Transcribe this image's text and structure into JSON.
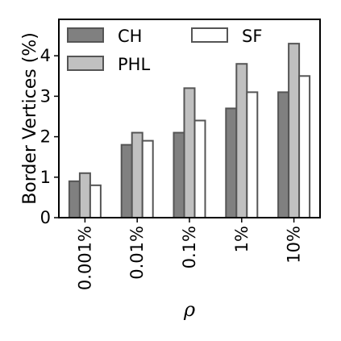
{
  "chart_data": {
    "type": "bar",
    "ylabel": "Border Vertices (%)",
    "xlabel": "ρ",
    "categories": [
      "0.001%",
      "0.01%",
      "0.1%",
      "1%",
      "10%"
    ],
    "ylim": [
      0,
      4.9
    ],
    "yticks": [
      "0",
      "1",
      "2",
      "3",
      "4"
    ],
    "grid": false,
    "legend_position": "top",
    "series": [
      {
        "name": "CH",
        "values": [
          0.9,
          1.8,
          2.1,
          2.7,
          3.1
        ],
        "color": "#808080"
      },
      {
        "name": "PHL",
        "values": [
          1.1,
          2.1,
          3.2,
          3.8,
          4.3
        ],
        "color": "#c0c0c0"
      },
      {
        "name": "SF",
        "values": [
          0.8,
          1.9,
          2.4,
          3.1,
          3.5
        ],
        "color": "#ffffff"
      }
    ],
    "bar_edge_color": "#555555"
  }
}
